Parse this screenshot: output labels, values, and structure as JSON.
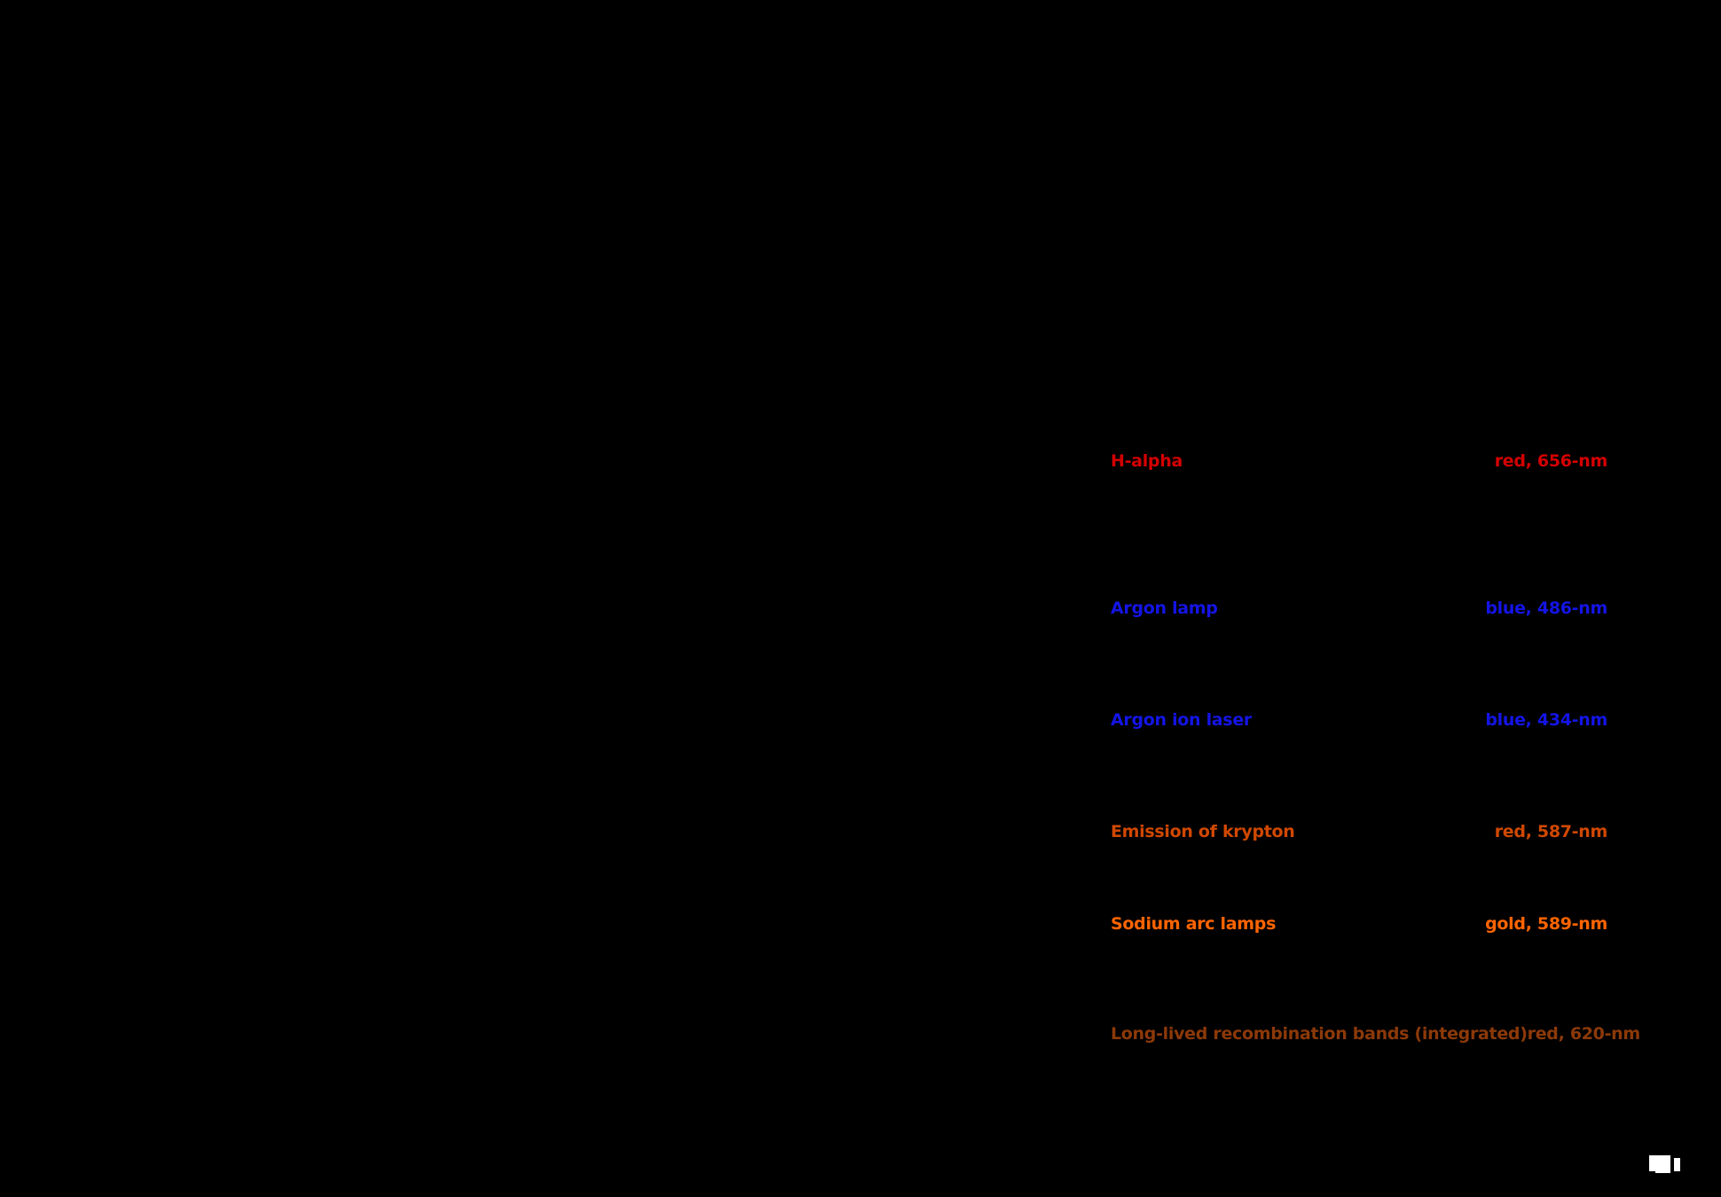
{
  "screen": {
    "background_color": "#000000"
  },
  "spectral_list": {
    "rows": [
      {
        "label": "H-alpha",
        "value": "red, 656-nm",
        "color": "#d40000"
      },
      {
        "label": "Argon lamp",
        "value": "blue, 486-nm",
        "color": "#1414e6"
      },
      {
        "label": "Argon ion laser",
        "value": "blue, 434-nm",
        "color": "#1414e6"
      },
      {
        "label": "Emission of krypton",
        "value": "red, 587-nm",
        "color": "#d04800"
      },
      {
        "label": "Sodium arc lamps",
        "value": "gold, 589-nm",
        "color": "#ff6400"
      },
      {
        "label": "Long-lived recombination bands (integrated)",
        "value": "red, 620-nm",
        "color": "#8c3908"
      }
    ]
  },
  "artifacts": {
    "cursor_glyph": "white-block-and-bar"
  }
}
